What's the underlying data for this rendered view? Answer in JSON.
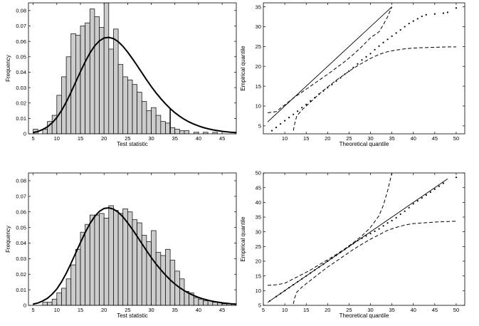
{
  "chart_data": [
    {
      "id": "hist-top",
      "type": "bar",
      "xlabel": "Test statistic",
      "ylabel": "Frequency",
      "xlim": [
        4,
        48
      ],
      "ylim": [
        0,
        0.085
      ],
      "xticks": [
        5,
        10,
        15,
        20,
        25,
        30,
        35,
        40,
        45
      ],
      "yticks": [
        0,
        0.01,
        0.02,
        0.03,
        0.04,
        0.05,
        0.06,
        0.07,
        0.08
      ],
      "ytick_labels": [
        "0",
        "0.01",
        "0.02",
        "0.03",
        "0.04",
        "0.05",
        "0.06",
        "0.07",
        "0.08"
      ],
      "grid": false,
      "bar_color": "#cccccc",
      "bins_start": 5,
      "bin_width": 1,
      "values": [
        0.003,
        0.0,
        0.003,
        0.008,
        0.012,
        0.025,
        0.037,
        0.05,
        0.065,
        0.064,
        0.07,
        0.072,
        0.081,
        0.076,
        0.069,
        0.085,
        0.055,
        0.068,
        0.045,
        0.037,
        0.035,
        0.032,
        0.027,
        0.021,
        0.015,
        0.017,
        0.012,
        0.008,
        0.007,
        0.004,
        0.003,
        0.002,
        0.002,
        0.0,
        0.001,
        0.0,
        0.001,
        0.0,
        0.001,
        0.0
      ],
      "curve": {
        "x": [
          5,
          6,
          7,
          8,
          9,
          10,
          11,
          12,
          13,
          14,
          15,
          16,
          17,
          18,
          19,
          20,
          21,
          22,
          23,
          24,
          25,
          26,
          27,
          28,
          29,
          30,
          31,
          32,
          33,
          34,
          35,
          36,
          37,
          38,
          39,
          40,
          41,
          42,
          43,
          44,
          45,
          46,
          47,
          48
        ],
        "y": [
          0.0008,
          0.0015,
          0.0028,
          0.0045,
          0.0071,
          0.0105,
          0.0151,
          0.0206,
          0.0269,
          0.0336,
          0.0403,
          0.0467,
          0.0524,
          0.057,
          0.0603,
          0.0622,
          0.0626,
          0.0618,
          0.0598,
          0.0568,
          0.053,
          0.0488,
          0.0443,
          0.0397,
          0.0351,
          0.0307,
          0.0266,
          0.0229,
          0.0195,
          0.0164,
          0.0137,
          0.0114,
          0.0094,
          0.0077,
          0.0063,
          0.0051,
          0.0041,
          0.0033,
          0.0026,
          0.0021,
          0.0016,
          0.0013,
          0.001,
          0.0008
        ]
      },
      "vline": {
        "x": 34,
        "y": 0.0164
      }
    },
    {
      "id": "qq-top",
      "type": "scatter",
      "xlabel": "Theoretical quantile",
      "ylabel": "Empirical quantile",
      "xlim": [
        5,
        52
      ],
      "ylim": [
        3,
        36
      ],
      "xticks": [
        10,
        15,
        20,
        25,
        30,
        35,
        40,
        45,
        50
      ],
      "yticks": [
        5,
        10,
        15,
        20,
        25,
        30,
        35
      ],
      "grid": false,
      "reference_line": {
        "x": [
          6,
          35
        ],
        "y": [
          6,
          35
        ]
      },
      "points": {
        "x": [
          7,
          8,
          9,
          10,
          11,
          12,
          13,
          14,
          15,
          16,
          17,
          18,
          19,
          20,
          21,
          22,
          23,
          24,
          25,
          26,
          27,
          28,
          29,
          30,
          31,
          32,
          33,
          34,
          35,
          36,
          37,
          38,
          39,
          40,
          41,
          42,
          43,
          45,
          47,
          48,
          50
        ],
        "y": [
          3.8,
          4.6,
          5.5,
          6.3,
          7.1,
          7.9,
          8.7,
          9.6,
          10.4,
          11.3,
          12.1,
          13.0,
          13.8,
          14.6,
          15.4,
          16.3,
          17.1,
          18.0,
          18.8,
          19.7,
          20.6,
          21.6,
          22.4,
          23.2,
          24.2,
          25.1,
          26.0,
          26.8,
          27.6,
          28.4,
          29.2,
          30.0,
          30.8,
          31.4,
          32.0,
          32.6,
          33.0,
          33.2,
          33.4,
          33.6,
          34.7
        ]
      },
      "envelope_upper": {
        "x": [
          6,
          8,
          10,
          12,
          14,
          16,
          18,
          20,
          22,
          24,
          26,
          28,
          30,
          32,
          33,
          34,
          35
        ],
        "y": [
          8.3,
          8.6,
          10.3,
          12.0,
          13.5,
          15.0,
          16.5,
          18.0,
          19.6,
          21.2,
          23.0,
          25.0,
          27.2,
          28.7,
          30.5,
          32.5,
          35
        ]
      },
      "envelope_lower": {
        "x": [
          12,
          12.3,
          12.8,
          14,
          16,
          18,
          20,
          22,
          24,
          26,
          28,
          30,
          32,
          34,
          36,
          38,
          40,
          42,
          45,
          48,
          50
        ],
        "y": [
          3.8,
          5.5,
          7.5,
          9.0,
          11.0,
          13.0,
          14.8,
          16.5,
          18.0,
          19.5,
          20.8,
          22.0,
          23.0,
          23.7,
          24.1,
          24.4,
          24.6,
          24.7,
          24.8,
          24.9,
          24.9
        ]
      }
    },
    {
      "id": "hist-bottom",
      "type": "bar",
      "xlabel": "Test statistic",
      "ylabel": "Frequency",
      "xlim": [
        4,
        48
      ],
      "ylim": [
        0,
        0.085
      ],
      "xticks": [
        5,
        10,
        15,
        20,
        25,
        30,
        35,
        40,
        45
      ],
      "yticks": [
        0,
        0.01,
        0.02,
        0.03,
        0.04,
        0.05,
        0.06,
        0.07,
        0.08
      ],
      "ytick_labels": [
        "0",
        "0.01",
        "0.02",
        "0.03",
        "0.04",
        "0.05",
        "0.06",
        "0.07",
        "0.08"
      ],
      "grid": false,
      "bar_color": "#cccccc",
      "bins_start": 5,
      "bin_width": 1,
      "values": [
        0.0,
        0.0,
        0.002,
        0.002,
        0.004,
        0.008,
        0.011,
        0.017,
        0.026,
        0.036,
        0.047,
        0.052,
        0.058,
        0.058,
        0.059,
        0.056,
        0.064,
        0.061,
        0.059,
        0.062,
        0.06,
        0.055,
        0.053,
        0.045,
        0.041,
        0.048,
        0.034,
        0.032,
        0.036,
        0.029,
        0.022,
        0.017,
        0.009,
        0.008,
        0.005,
        0.004,
        0.003,
        0.003,
        0.002,
        0.002,
        0.001,
        0.001,
        0.001
      ],
      "curve": {
        "x": [
          5,
          6,
          7,
          8,
          9,
          10,
          11,
          12,
          13,
          14,
          15,
          16,
          17,
          18,
          19,
          20,
          21,
          22,
          23,
          24,
          25,
          26,
          27,
          28,
          29,
          30,
          31,
          32,
          33,
          34,
          35,
          36,
          37,
          38,
          39,
          40,
          41,
          42,
          43,
          44,
          45,
          46,
          47,
          48
        ],
        "y": [
          0.0008,
          0.0015,
          0.0028,
          0.0045,
          0.0071,
          0.0105,
          0.0151,
          0.0206,
          0.0269,
          0.0336,
          0.0403,
          0.0467,
          0.0524,
          0.057,
          0.0603,
          0.0622,
          0.0626,
          0.0618,
          0.0598,
          0.0568,
          0.053,
          0.0488,
          0.0443,
          0.0397,
          0.0351,
          0.0307,
          0.0266,
          0.0229,
          0.0195,
          0.0164,
          0.0137,
          0.0114,
          0.0094,
          0.0077,
          0.0063,
          0.0051,
          0.0041,
          0.0033,
          0.0026,
          0.0021,
          0.0016,
          0.0013,
          0.001,
          0.0008
        ]
      }
    },
    {
      "id": "qq-bottom",
      "type": "scatter",
      "xlabel": "Theoretical quantile",
      "ylabel": "Empirical quantile",
      "xlim": [
        5,
        52
      ],
      "ylim": [
        5,
        50
      ],
      "xticks": [
        5,
        10,
        15,
        20,
        25,
        30,
        35,
        40,
        45,
        50
      ],
      "yticks": [
        5,
        10,
        15,
        20,
        25,
        30,
        35,
        40,
        45,
        50
      ],
      "grid": false,
      "reference_line": {
        "x": [
          6,
          48
        ],
        "y": [
          6,
          48
        ]
      },
      "points": {
        "x": [
          6.5,
          8,
          9,
          10,
          11,
          12,
          13,
          14,
          15,
          16,
          17,
          18,
          19,
          20,
          21,
          22,
          23,
          24,
          25,
          26,
          27,
          28,
          29,
          30,
          31,
          32,
          33,
          34,
          35,
          36,
          37,
          38,
          39,
          40,
          41,
          42,
          43,
          44,
          45,
          46,
          47,
          50
        ],
        "y": [
          6.5,
          8.0,
          9.0,
          10.0,
          11.0,
          12.0,
          13.0,
          14.0,
          15.0,
          16.0,
          17.0,
          18.0,
          19.0,
          20.0,
          21.0,
          22.0,
          23.0,
          24.0,
          25.0,
          26.0,
          27.0,
          27.8,
          28.6,
          29.4,
          30.2,
          31.0,
          32.0,
          33.0,
          33.8,
          34.8,
          36.0,
          37.0,
          38.2,
          39.5,
          40.5,
          41.5,
          42.5,
          43.5,
          44.5,
          45.5,
          46.5,
          48.5
        ]
      },
      "envelope_upper": {
        "x": [
          6,
          8,
          10,
          12,
          14,
          16,
          18,
          20,
          22,
          24,
          26,
          28,
          30,
          32,
          33,
          34,
          35
        ],
        "y": [
          11.8,
          12.0,
          12.5,
          14.0,
          15.5,
          17.0,
          18.8,
          20.5,
          22.3,
          24.2,
          26.3,
          28.6,
          31.5,
          35.5,
          39.0,
          44.0,
          50.0
        ]
      },
      "envelope_lower": {
        "x": [
          12,
          12.3,
          12.8,
          14,
          16,
          18,
          20,
          22,
          24,
          26,
          28,
          30,
          32,
          34,
          36,
          38,
          40,
          42,
          45,
          48,
          50
        ],
        "y": [
          5.5,
          7.5,
          9.5,
          11.2,
          13.5,
          15.8,
          18.0,
          20.0,
          22.0,
          24.0,
          25.8,
          27.5,
          29.0,
          30.5,
          31.5,
          32.3,
          32.8,
          33.0,
          33.3,
          33.5,
          33.6
        ]
      }
    }
  ]
}
